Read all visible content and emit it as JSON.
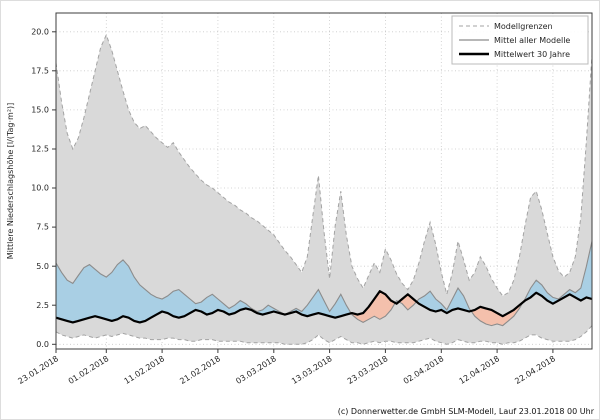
{
  "figure": {
    "caption": "(c) Donnerwetter.de GmbH SLM-Modell, Lauf 23.01.2018 00 Uhr"
  },
  "chart_data": {
    "type": "area",
    "title": "",
    "xlabel": "",
    "ylabel": "Mittlere Niederschlagshöhe [l/(Tag·m²)]",
    "ylim": [
      -0.3,
      21.2
    ],
    "xlim_days": [
      0,
      96
    ],
    "start_date": "23.01.2018",
    "grid": true,
    "x_tick_days": [
      0,
      9,
      19,
      29,
      39,
      49,
      59,
      69,
      79,
      89
    ],
    "x_tick_labels": [
      "23.01.2018",
      "01.02.2018",
      "11.02.2018",
      "21.02.2018",
      "03.03.2018",
      "13.03.2018",
      "23.03.2018",
      "02.04.2018",
      "12.04.2018",
      "22.04.2018"
    ],
    "y_ticks": [
      0,
      2.5,
      5,
      7.5,
      10,
      12.5,
      15,
      17.5,
      20
    ],
    "y_tick_labels": [
      "0.0",
      "2.5",
      "5.0",
      "7.5",
      "10.0",
      "12.5",
      "15.0",
      "17.5",
      "20.0"
    ],
    "legend": {
      "position": "upper right",
      "items": [
        {
          "label": "Modellgrenzen",
          "style": "dashed-gray"
        },
        {
          "label": "Mittel aller Modelle",
          "style": "solid-gray"
        },
        {
          "label": "Mittelwert 30 Jahre",
          "style": "thick-black"
        }
      ]
    },
    "colors": {
      "band": "#d9d9d9",
      "band_edge": "#a3a3a3",
      "mean_line": "#8c8c8c",
      "above_fill": "#a9cfe4",
      "below_fill": "#f4c0ac",
      "clim_line": "#000000",
      "grid": "#c9c9c9",
      "spine": "#3c3c3c"
    },
    "series": [
      {
        "name": "Modellgrenzen (Maximum)",
        "values": [
          18.0,
          15.5,
          13.5,
          12.5,
          13.2,
          14.5,
          16.0,
          17.5,
          19.0,
          19.8,
          18.8,
          17.5,
          16.2,
          15.0,
          14.2,
          13.8,
          14.0,
          13.6,
          13.2,
          12.9,
          12.6,
          12.9,
          12.3,
          11.8,
          11.3,
          10.9,
          10.5,
          10.2,
          10.0,
          9.7,
          9.4,
          9.1,
          8.9,
          8.6,
          8.4,
          8.1,
          7.9,
          7.6,
          7.3,
          7.0,
          6.5,
          6.0,
          5.6,
          5.1,
          4.6,
          5.6,
          8.2,
          10.8,
          7.2,
          4.2,
          7.6,
          9.8,
          7.0,
          5.0,
          4.2,
          3.6,
          4.4,
          5.2,
          4.6,
          6.1,
          5.4,
          4.5,
          3.9,
          3.5,
          4.1,
          5.2,
          6.6,
          7.8,
          6.4,
          4.6,
          3.2,
          4.6,
          6.6,
          5.4,
          4.1,
          4.6,
          5.6,
          5.0,
          4.2,
          3.6,
          3.1,
          3.3,
          4.1,
          5.6,
          7.6,
          9.4,
          9.8,
          8.6,
          7.1,
          5.6,
          4.7,
          4.3,
          4.6,
          5.6,
          8.1,
          13.0,
          18.5
        ]
      },
      {
        "name": "Modellgrenzen (Minimum)",
        "values": [
          0.8,
          0.6,
          0.5,
          0.4,
          0.5,
          0.6,
          0.5,
          0.4,
          0.5,
          0.6,
          0.5,
          0.6,
          0.7,
          0.6,
          0.5,
          0.4,
          0.4,
          0.3,
          0.3,
          0.3,
          0.4,
          0.4,
          0.3,
          0.3,
          0.2,
          0.2,
          0.3,
          0.3,
          0.3,
          0.2,
          0.2,
          0.2,
          0.2,
          0.2,
          0.1,
          0.1,
          0.1,
          0.1,
          0.1,
          0.1,
          0.1,
          0.0,
          0.0,
          0.0,
          0.0,
          0.1,
          0.3,
          0.6,
          0.3,
          0.1,
          0.3,
          0.5,
          0.3,
          0.1,
          0.1,
          0.0,
          0.1,
          0.2,
          0.1,
          0.2,
          0.2,
          0.1,
          0.1,
          0.1,
          0.1,
          0.2,
          0.3,
          0.4,
          0.2,
          0.1,
          0.0,
          0.1,
          0.3,
          0.2,
          0.1,
          0.1,
          0.2,
          0.2,
          0.1,
          0.1,
          0.0,
          0.1,
          0.1,
          0.2,
          0.4,
          0.6,
          0.6,
          0.4,
          0.3,
          0.2,
          0.2,
          0.2,
          0.2,
          0.3,
          0.5,
          0.8,
          1.2
        ]
      },
      {
        "name": "Mittel aller Modelle",
        "values": [
          5.2,
          4.6,
          4.1,
          3.9,
          4.4,
          4.9,
          5.1,
          4.8,
          4.5,
          4.3,
          4.6,
          5.1,
          5.4,
          5.0,
          4.3,
          3.8,
          3.5,
          3.2,
          3.0,
          2.9,
          3.1,
          3.4,
          3.5,
          3.2,
          2.9,
          2.6,
          2.7,
          3.0,
          3.2,
          2.9,
          2.6,
          2.3,
          2.5,
          2.8,
          2.6,
          2.3,
          2.1,
          2.2,
          2.5,
          2.3,
          2.1,
          1.9,
          2.1,
          2.3,
          2.1,
          2.5,
          3.0,
          3.5,
          2.8,
          2.1,
          2.6,
          3.2,
          2.5,
          1.9,
          1.6,
          1.4,
          1.6,
          1.8,
          1.6,
          1.8,
          2.2,
          2.8,
          2.6,
          2.2,
          2.5,
          2.9,
          3.1,
          3.4,
          2.9,
          2.6,
          2.2,
          2.9,
          3.6,
          3.1,
          2.3,
          1.8,
          1.5,
          1.3,
          1.2,
          1.3,
          1.2,
          1.5,
          1.8,
          2.3,
          2.9,
          3.6,
          4.1,
          3.8,
          3.3,
          3.0,
          2.9,
          3.2,
          3.5,
          3.3,
          3.6,
          5.0,
          6.6
        ]
      },
      {
        "name": "Mittelwert 30 Jahre",
        "values": [
          1.7,
          1.6,
          1.5,
          1.4,
          1.5,
          1.6,
          1.7,
          1.8,
          1.7,
          1.6,
          1.5,
          1.6,
          1.8,
          1.7,
          1.5,
          1.4,
          1.5,
          1.7,
          1.9,
          2.1,
          2.0,
          1.8,
          1.7,
          1.8,
          2.0,
          2.2,
          2.1,
          1.9,
          2.0,
          2.2,
          2.1,
          1.9,
          2.0,
          2.2,
          2.3,
          2.2,
          2.0,
          1.9,
          2.0,
          2.1,
          2.0,
          1.9,
          2.0,
          2.1,
          1.9,
          1.8,
          1.9,
          2.0,
          1.9,
          1.8,
          1.7,
          1.8,
          1.9,
          2.0,
          1.9,
          2.0,
          2.4,
          2.9,
          3.4,
          3.2,
          2.8,
          2.6,
          2.9,
          3.2,
          2.9,
          2.6,
          2.4,
          2.2,
          2.1,
          2.2,
          2.0,
          2.2,
          2.3,
          2.2,
          2.1,
          2.2,
          2.4,
          2.3,
          2.2,
          2.0,
          1.8,
          2.0,
          2.2,
          2.5,
          2.8,
          3.0,
          3.3,
          3.1,
          2.8,
          2.6,
          2.8,
          3.0,
          3.2,
          3.0,
          2.8,
          3.0,
          2.9
        ]
      }
    ]
  }
}
